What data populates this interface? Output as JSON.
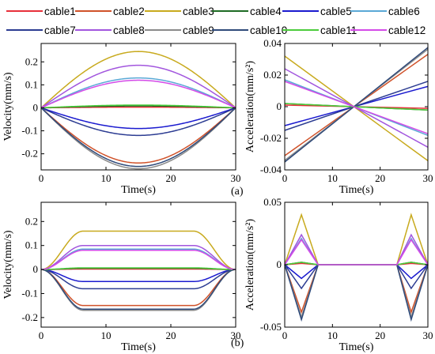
{
  "legend": [
    {
      "name": "cable1",
      "color": "#e8303a"
    },
    {
      "name": "cable2",
      "color": "#d0522a"
    },
    {
      "name": "cable3",
      "color": "#c8aa1e"
    },
    {
      "name": "cable4",
      "color": "#1e6b24"
    },
    {
      "name": "cable5",
      "color": "#1a1acf"
    },
    {
      "name": "cable6",
      "color": "#5aa8d6"
    },
    {
      "name": "cable7",
      "color": "#2c3c92"
    },
    {
      "name": "cable8",
      "color": "#a256de"
    },
    {
      "name": "cable9",
      "color": "#8a8a8a"
    },
    {
      "name": "cable10",
      "color": "#2f4a7a"
    },
    {
      "name": "cable11",
      "color": "#4ccc3c"
    },
    {
      "name": "cable12",
      "color": "#d44ae8"
    }
  ],
  "panel_labels": {
    "a": "(a)",
    "b": "(b)"
  },
  "chart_data": [
    {
      "type": "line",
      "id": "a-velocity",
      "panel": "(a)",
      "xlabel": "Time(s)",
      "ylabel": "Velocity(mm/s)",
      "xlim": [
        0,
        30
      ],
      "ylim": [
        -0.27,
        0.28
      ],
      "xticks": [
        0,
        10,
        20,
        30
      ],
      "yticks": [
        -0.2,
        -0.1,
        0,
        0.1,
        0.2
      ],
      "ytick_labels": [
        "-0.2",
        "-0.1",
        "0",
        "0.1",
        "0.2"
      ],
      "profile": "sine",
      "grid": false,
      "series": [
        {
          "name": "cable1",
          "peak": 0.003
        },
        {
          "name": "cable2",
          "peak": -0.24
        },
        {
          "name": "cable3",
          "peak": 0.245
        },
        {
          "name": "cable4",
          "peak": 0.008
        },
        {
          "name": "cable5",
          "peak": -0.09
        },
        {
          "name": "cable6",
          "peak": 0.13
        },
        {
          "name": "cable7",
          "peak": -0.12
        },
        {
          "name": "cable8",
          "peak": 0.185
        },
        {
          "name": "cable9",
          "peak": -0.265
        },
        {
          "name": "cable10",
          "peak": -0.255
        },
        {
          "name": "cable11",
          "peak": 0.012
        },
        {
          "name": "cable12",
          "peak": 0.12
        }
      ]
    },
    {
      "type": "line",
      "id": "a-acceleration",
      "xlabel": "Time(s)",
      "ylabel": "Acceleration(mm/s²)",
      "xlim": [
        0,
        30
      ],
      "ylim": [
        -0.04,
        0.04
      ],
      "xticks": [
        0,
        10,
        20,
        30
      ],
      "yticks": [
        -0.04,
        -0.02,
        0,
        0.02,
        0.04
      ],
      "ytick_labels": [
        "-0.04",
        "-0.02",
        "0",
        "0.02",
        "0.04"
      ],
      "profile": "linear",
      "cross_time": 14.5,
      "grid": false,
      "series": [
        {
          "name": "cable1",
          "start": 0.001
        },
        {
          "name": "cable2",
          "start": -0.031
        },
        {
          "name": "cable3",
          "start": 0.032
        },
        {
          "name": "cable4",
          "start": 0.002
        },
        {
          "name": "cable5",
          "start": -0.012
        },
        {
          "name": "cable6",
          "start": 0.017
        },
        {
          "name": "cable7",
          "start": -0.015
        },
        {
          "name": "cable8",
          "start": 0.024
        },
        {
          "name": "cable9",
          "start": -0.034
        },
        {
          "name": "cable10",
          "start": -0.035
        },
        {
          "name": "cable11",
          "start": 0.002
        },
        {
          "name": "cable12",
          "start": 0.016
        }
      ]
    },
    {
      "type": "line",
      "id": "b-velocity",
      "panel": "(b)",
      "xlabel": "Time(s)",
      "ylabel": "Velocity(mm/s)",
      "xlim": [
        0,
        30
      ],
      "ylim": [
        -0.24,
        0.28
      ],
      "xticks": [
        0,
        10,
        20,
        30
      ],
      "yticks": [
        -0.2,
        -0.1,
        0,
        0.1,
        0.2
      ],
      "ytick_labels": [
        "-0.2",
        "-0.1",
        "0",
        "0.1",
        "0.2"
      ],
      "profile": "trapezoid",
      "ramp": [
        [
          0,
          6.5
        ],
        [
          23.5,
          30
        ]
      ],
      "grid": false,
      "series": [
        {
          "name": "cable1",
          "plateau": 0.002
        },
        {
          "name": "cable2",
          "plateau": -0.15
        },
        {
          "name": "cable3",
          "plateau": 0.16
        },
        {
          "name": "cable4",
          "plateau": 0.005
        },
        {
          "name": "cable5",
          "plateau": -0.05
        },
        {
          "name": "cable6",
          "plateau": 0.085
        },
        {
          "name": "cable7",
          "plateau": -0.08
        },
        {
          "name": "cable8",
          "plateau": 0.1
        },
        {
          "name": "cable9",
          "plateau": -0.17
        },
        {
          "name": "cable10",
          "plateau": -0.165
        },
        {
          "name": "cable11",
          "plateau": 0.007
        },
        {
          "name": "cable12",
          "plateau": 0.08
        }
      ]
    },
    {
      "type": "line",
      "id": "b-acceleration",
      "xlabel": "Time(s)",
      "ylabel": "Acceleration(mm/s²)",
      "xlim": [
        0,
        30
      ],
      "ylim": [
        -0.05,
        0.05
      ],
      "xticks": [
        0,
        10,
        20,
        30
      ],
      "yticks": [
        -0.05,
        0,
        0.05
      ],
      "ytick_labels": [
        "-0.05",
        "0",
        "0.05"
      ],
      "profile": "triangle",
      "pulses": [
        [
          0,
          3.5,
          7
        ],
        [
          23.5,
          26.5,
          30
        ]
      ],
      "grid": false,
      "series": [
        {
          "name": "cable1",
          "peak": 0.001
        },
        {
          "name": "cable2",
          "peak": -0.038
        },
        {
          "name": "cable3",
          "peak": 0.04
        },
        {
          "name": "cable4",
          "peak": 0.002
        },
        {
          "name": "cable5",
          "peak": -0.011
        },
        {
          "name": "cable6",
          "peak": 0.021
        },
        {
          "name": "cable7",
          "peak": -0.019
        },
        {
          "name": "cable8",
          "peak": 0.024
        },
        {
          "name": "cable9",
          "peak": -0.042
        },
        {
          "name": "cable10",
          "peak": -0.044
        },
        {
          "name": "cable11",
          "peak": 0.002
        },
        {
          "name": "cable12",
          "peak": 0.02
        }
      ]
    }
  ]
}
